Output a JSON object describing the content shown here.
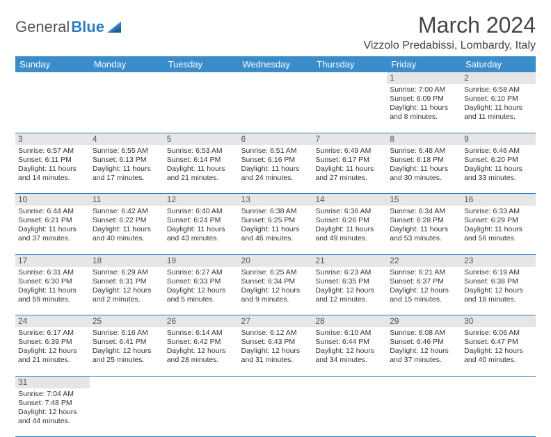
{
  "logo": {
    "text1": "General",
    "text2": "Blue",
    "sail_color": "#2f7bbf"
  },
  "title": "March 2024",
  "location": "Vizzolo Predabissi, Lombardy, Italy",
  "colors": {
    "header_bg": "#3b8ccb",
    "header_text": "#ffffff",
    "daynum_bg": "#e6e6e6",
    "cell_border": "#2f7bbf",
    "body_text": "#333333"
  },
  "day_headers": [
    "Sunday",
    "Monday",
    "Tuesday",
    "Wednesday",
    "Thursday",
    "Friday",
    "Saturday"
  ],
  "weeks": [
    [
      null,
      null,
      null,
      null,
      null,
      {
        "n": "1",
        "sunrise": "7:00 AM",
        "sunset": "6:09 PM",
        "day_h": "11",
        "day_m": "8"
      },
      {
        "n": "2",
        "sunrise": "6:58 AM",
        "sunset": "6:10 PM",
        "day_h": "11",
        "day_m": "11"
      }
    ],
    [
      {
        "n": "3",
        "sunrise": "6:57 AM",
        "sunset": "6:11 PM",
        "day_h": "11",
        "day_m": "14"
      },
      {
        "n": "4",
        "sunrise": "6:55 AM",
        "sunset": "6:13 PM",
        "day_h": "11",
        "day_m": "17"
      },
      {
        "n": "5",
        "sunrise": "6:53 AM",
        "sunset": "6:14 PM",
        "day_h": "11",
        "day_m": "21"
      },
      {
        "n": "6",
        "sunrise": "6:51 AM",
        "sunset": "6:16 PM",
        "day_h": "11",
        "day_m": "24"
      },
      {
        "n": "7",
        "sunrise": "6:49 AM",
        "sunset": "6:17 PM",
        "day_h": "11",
        "day_m": "27"
      },
      {
        "n": "8",
        "sunrise": "6:48 AM",
        "sunset": "6:18 PM",
        "day_h": "11",
        "day_m": "30"
      },
      {
        "n": "9",
        "sunrise": "6:46 AM",
        "sunset": "6:20 PM",
        "day_h": "11",
        "day_m": "33"
      }
    ],
    [
      {
        "n": "10",
        "sunrise": "6:44 AM",
        "sunset": "6:21 PM",
        "day_h": "11",
        "day_m": "37"
      },
      {
        "n": "11",
        "sunrise": "6:42 AM",
        "sunset": "6:22 PM",
        "day_h": "11",
        "day_m": "40"
      },
      {
        "n": "12",
        "sunrise": "6:40 AM",
        "sunset": "6:24 PM",
        "day_h": "11",
        "day_m": "43"
      },
      {
        "n": "13",
        "sunrise": "6:38 AM",
        "sunset": "6:25 PM",
        "day_h": "11",
        "day_m": "46"
      },
      {
        "n": "14",
        "sunrise": "6:36 AM",
        "sunset": "6:26 PM",
        "day_h": "11",
        "day_m": "49"
      },
      {
        "n": "15",
        "sunrise": "6:34 AM",
        "sunset": "6:28 PM",
        "day_h": "11",
        "day_m": "53"
      },
      {
        "n": "16",
        "sunrise": "6:33 AM",
        "sunset": "6:29 PM",
        "day_h": "11",
        "day_m": "56"
      }
    ],
    [
      {
        "n": "17",
        "sunrise": "6:31 AM",
        "sunset": "6:30 PM",
        "day_h": "11",
        "day_m": "59"
      },
      {
        "n": "18",
        "sunrise": "6:29 AM",
        "sunset": "6:31 PM",
        "day_h": "12",
        "day_m": "2"
      },
      {
        "n": "19",
        "sunrise": "6:27 AM",
        "sunset": "6:33 PM",
        "day_h": "12",
        "day_m": "5"
      },
      {
        "n": "20",
        "sunrise": "6:25 AM",
        "sunset": "6:34 PM",
        "day_h": "12",
        "day_m": "9"
      },
      {
        "n": "21",
        "sunrise": "6:23 AM",
        "sunset": "6:35 PM",
        "day_h": "12",
        "day_m": "12"
      },
      {
        "n": "22",
        "sunrise": "6:21 AM",
        "sunset": "6:37 PM",
        "day_h": "12",
        "day_m": "15"
      },
      {
        "n": "23",
        "sunrise": "6:19 AM",
        "sunset": "6:38 PM",
        "day_h": "12",
        "day_m": "18"
      }
    ],
    [
      {
        "n": "24",
        "sunrise": "6:17 AM",
        "sunset": "6:39 PM",
        "day_h": "12",
        "day_m": "21"
      },
      {
        "n": "25",
        "sunrise": "6:16 AM",
        "sunset": "6:41 PM",
        "day_h": "12",
        "day_m": "25"
      },
      {
        "n": "26",
        "sunrise": "6:14 AM",
        "sunset": "6:42 PM",
        "day_h": "12",
        "day_m": "28"
      },
      {
        "n": "27",
        "sunrise": "6:12 AM",
        "sunset": "6:43 PM",
        "day_h": "12",
        "day_m": "31"
      },
      {
        "n": "28",
        "sunrise": "6:10 AM",
        "sunset": "6:44 PM",
        "day_h": "12",
        "day_m": "34"
      },
      {
        "n": "29",
        "sunrise": "6:08 AM",
        "sunset": "6:46 PM",
        "day_h": "12",
        "day_m": "37"
      },
      {
        "n": "30",
        "sunrise": "6:06 AM",
        "sunset": "6:47 PM",
        "day_h": "12",
        "day_m": "40"
      }
    ],
    [
      {
        "n": "31",
        "sunrise": "7:04 AM",
        "sunset": "7:48 PM",
        "day_h": "12",
        "day_m": "44"
      },
      null,
      null,
      null,
      null,
      null,
      null
    ]
  ],
  "labels": {
    "sunrise": "Sunrise:",
    "sunset": "Sunset:",
    "daylight": "Daylight:",
    "hours": "hours",
    "and": "and",
    "minutes": "minutes."
  }
}
